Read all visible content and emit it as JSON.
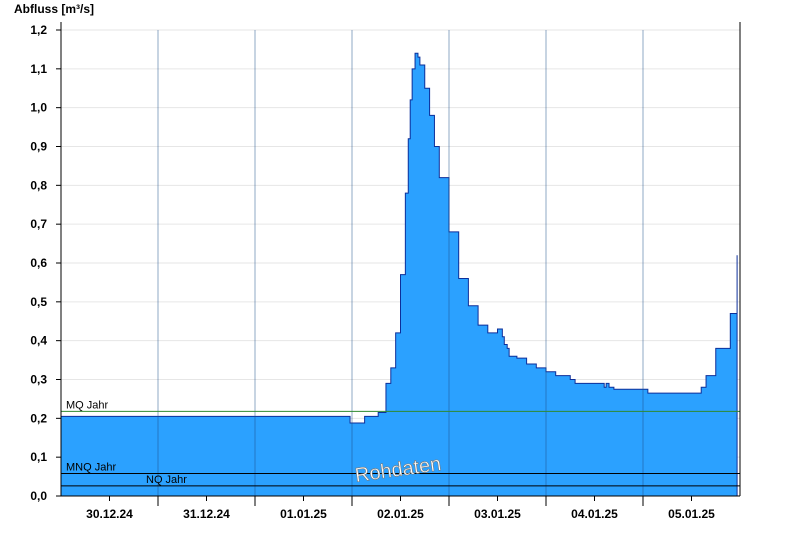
{
  "chart_data": {
    "type": "area",
    "ylabel": "Abfluss [m³/s]",
    "ylim": [
      0,
      1.2
    ],
    "yticks": [
      "0,0",
      "0,1",
      "0,2",
      "0,3",
      "0,4",
      "0,5",
      "0,6",
      "0,7",
      "0,8",
      "0,9",
      "1,0",
      "1,1",
      "1,2"
    ],
    "xlim": [
      0,
      7
    ],
    "x_tick_labels": [
      "30.12.24",
      "31.12.24",
      "01.01.25",
      "02.01.25",
      "03.01.25",
      "04.01.25",
      "05.01.25"
    ],
    "grid": true,
    "color": "#2ba1ff",
    "watermark": "Rohdaten",
    "reference_lines": [
      {
        "name": "MQ Jahr",
        "value": 0.218,
        "color": "#2f8a2f"
      },
      {
        "name": "MNQ Jahr",
        "value": 0.058,
        "color": "#000000"
      },
      {
        "name": "NQ Jahr",
        "value": 0.026,
        "color": "#000000"
      }
    ],
    "series": [
      {
        "x": [
          0,
          2.97,
          2.98,
          3.12,
          3.13,
          3.25,
          3.27,
          3.35,
          3.4,
          3.45,
          3.5,
          3.55,
          3.58,
          3.6,
          3.62,
          3.65,
          3.67,
          3.68,
          3.7,
          3.72,
          3.75,
          3.8,
          3.85,
          3.9,
          4.0,
          4.1,
          4.2,
          4.3,
          4.4,
          4.5,
          4.55,
          4.57,
          4.6,
          4.62,
          4.7,
          4.8,
          4.9,
          5.0,
          5.1,
          5.25,
          5.3,
          5.5,
          5.6,
          5.62,
          5.65,
          5.7,
          5.75,
          6.0,
          6.05,
          6.5,
          6.6,
          6.65,
          6.75,
          6.9,
          6.97
        ],
        "y": [
          0.205,
          0.205,
          0.188,
          0.188,
          0.205,
          0.205,
          0.215,
          0.29,
          0.33,
          0.42,
          0.57,
          0.78,
          0.92,
          1.02,
          1.1,
          1.14,
          1.14,
          1.13,
          1.11,
          1.11,
          1.05,
          0.98,
          0.9,
          0.82,
          0.68,
          0.56,
          0.49,
          0.44,
          0.42,
          0.43,
          0.41,
          0.39,
          0.38,
          0.36,
          0.355,
          0.34,
          0.33,
          0.32,
          0.31,
          0.3,
          0.29,
          0.29,
          0.28,
          0.29,
          0.28,
          0.275,
          0.275,
          0.275,
          0.265,
          0.265,
          0.28,
          0.31,
          0.38,
          0.47,
          0.62
        ]
      }
    ]
  }
}
